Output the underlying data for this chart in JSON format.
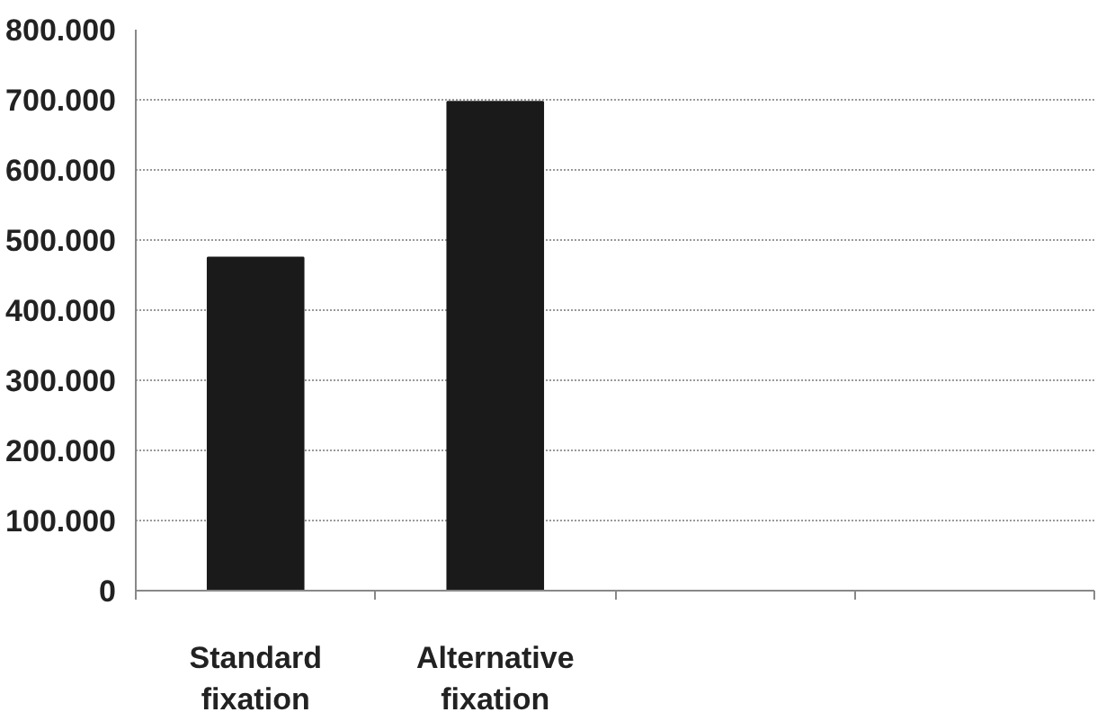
{
  "chart_data": {
    "type": "bar",
    "categories": [
      "Standard fixation",
      "Alternative fixation",
      null,
      null
    ],
    "values": [
      475000,
      697000,
      null,
      null
    ],
    "color": "#1a1a1a",
    "ylim": [
      0,
      800000
    ],
    "yticks": [
      {
        "value": 0,
        "label": "0"
      },
      {
        "value": 100000,
        "label": "100.000"
      },
      {
        "value": 200000,
        "label": "200.000"
      },
      {
        "value": 300000,
        "label": "300.000"
      },
      {
        "value": 400000,
        "label": "400.000"
      },
      {
        "value": 500000,
        "label": "500.000"
      },
      {
        "value": 600000,
        "label": "600.000"
      },
      {
        "value": 700000,
        "label": "700.000"
      },
      {
        "value": 800000,
        "label": "800.000"
      }
    ],
    "grid": "y"
  }
}
